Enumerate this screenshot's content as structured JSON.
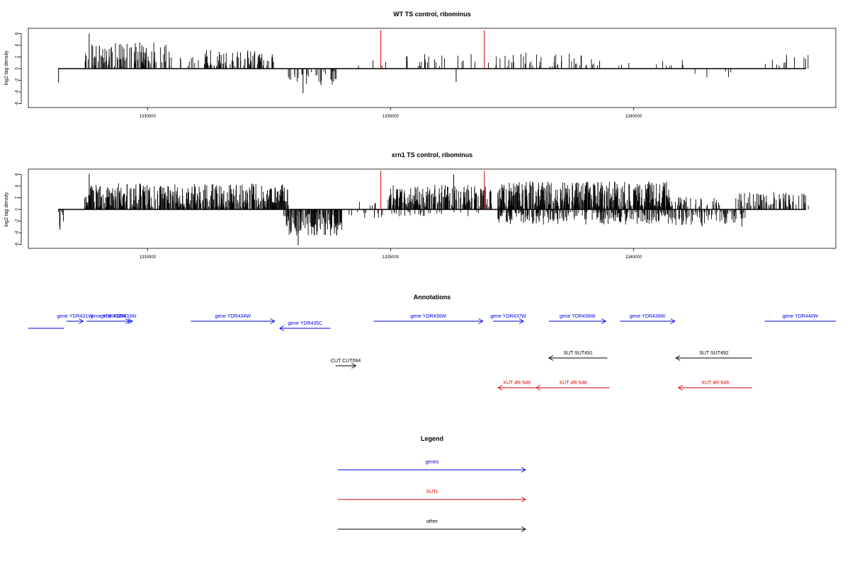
{
  "chart_data": [
    {
      "type": "bar",
      "title": "WT TS control, ribominus",
      "xlabel": "",
      "ylabel": "log2 tag density",
      "xlim": [
        1328000,
        1343900
      ],
      "ylim": [
        -6.8,
        6.8
      ],
      "x_ticks": [
        1330000,
        1335000,
        1340000
      ],
      "x_tick_labels": [
        "1330000",
        "1335000",
        "1340000"
      ],
      "y_ticks": [
        -6,
        -4,
        -2,
        0,
        2,
        4,
        6
      ],
      "y_tick_labels": [
        "-6",
        "-4",
        "-2",
        "0",
        "2",
        "4",
        "6"
      ],
      "highlight_color": "#dd0000",
      "bar_color": "#000000",
      "highlights": [
        {
          "x": 1334800,
          "y": 6.6
        },
        {
          "x": 1336930,
          "y": 6.6
        }
      ],
      "positive_clusters": [
        {
          "x": [
            1328700,
            1330500
          ],
          "max": 4.5,
          "density": 0.09
        },
        {
          "x": [
            1330500,
            1331100
          ],
          "max": 2.0,
          "density": 0.02
        },
        {
          "x": [
            1331150,
            1332600
          ],
          "max": 3.2,
          "density": 0.08
        },
        {
          "x": [
            1334300,
            1334950
          ],
          "max": 1.5,
          "density": 0.01
        },
        {
          "x": [
            1335100,
            1336800
          ],
          "max": 2.6,
          "density": 0.02
        },
        {
          "x": [
            1337000,
            1339400
          ],
          "max": 2.8,
          "density": 0.03
        },
        {
          "x": [
            1339400,
            1341200
          ],
          "max": 1.5,
          "density": 0.008
        },
        {
          "x": [
            1342700,
            1343600
          ],
          "max": 2.4,
          "density": 0.02
        }
      ],
      "negative_clusters": [
        {
          "x": [
            1332800,
            1333900
          ],
          "max": 3.0,
          "density": 0.04
        },
        {
          "x": [
            1340800,
            1342100
          ],
          "max": 2.0,
          "density": 0.006
        }
      ],
      "bars": [
        {
          "x": 1328170,
          "y": -2.4
        },
        {
          "x": 1328800,
          "y": 6.0
        },
        {
          "x": 1333200,
          "y": -4.2
        },
        {
          "x": 1336350,
          "y": -2.3
        }
      ]
    },
    {
      "type": "bar",
      "title": "xrn1 TS control, ribominus",
      "xlabel": "",
      "ylabel": "log2 tag density",
      "xlim": [
        1328000,
        1343900
      ],
      "ylim": [
        -6.8,
        6.8
      ],
      "x_ticks": [
        1330000,
        1335000,
        1340000
      ],
      "x_tick_labels": [
        "1330000",
        "1335000",
        "1340000"
      ],
      "y_ticks": [
        -6,
        -4,
        -2,
        0,
        2,
        4,
        6
      ],
      "y_tick_labels": [
        "-6",
        "-4",
        "-2",
        "0",
        "2",
        "4",
        "6"
      ],
      "highlight_color": "#dd0000",
      "bar_color": "#000000",
      "highlights": [
        {
          "x": 1334800,
          "y": 6.6
        },
        {
          "x": 1336930,
          "y": 6.6
        }
      ],
      "positive_clusters": [
        {
          "x": [
            1328700,
            1332900
          ],
          "max": 4.5,
          "density": 0.18
        },
        {
          "x": [
            1334300,
            1334700
          ],
          "max": 1.8,
          "density": 0.02
        },
        {
          "x": [
            1334950,
            1337100
          ],
          "max": 4.2,
          "density": 0.14
        },
        {
          "x": [
            1337200,
            1340800
          ],
          "max": 4.8,
          "density": 0.2
        },
        {
          "x": [
            1340800,
            1341800
          ],
          "max": 2.2,
          "density": 0.05
        },
        {
          "x": [
            1342100,
            1343600
          ],
          "max": 3.0,
          "density": 0.08
        }
      ],
      "negative_clusters": [
        {
          "x": [
            1328150,
            1328300
          ],
          "max": 3.2,
          "density": 0.05
        },
        {
          "x": [
            1332800,
            1334000
          ],
          "max": 4.5,
          "density": 0.18
        },
        {
          "x": [
            1334000,
            1334900
          ],
          "max": 1.5,
          "density": 0.02
        },
        {
          "x": [
            1335000,
            1336900
          ],
          "max": 1.2,
          "density": 0.02
        },
        {
          "x": [
            1337200,
            1340800
          ],
          "max": 2.6,
          "density": 0.1
        },
        {
          "x": [
            1340800,
            1342300
          ],
          "max": 3.0,
          "density": 0.08
        }
      ],
      "bars": [
        {
          "x": 1328200,
          "y": -3.5
        },
        {
          "x": 1328800,
          "y": 6.1
        },
        {
          "x": 1333100,
          "y": -6.1
        },
        {
          "x": 1336300,
          "y": 6.0
        }
      ]
    }
  ],
  "annotations": {
    "title": "Annotations",
    "colors": {
      "gene": "#0000ee",
      "xut": "#dd0000",
      "other": "#000000"
    },
    "features": [
      {
        "label": "",
        "kind": "gene",
        "start": 1328000,
        "end": 1328700,
        "strand": "none",
        "row": 2
      },
      {
        "label": "gene YDR431W",
        "kind": "gene",
        "start": 1328750,
        "end": 1329080,
        "strand": "+",
        "row": 1
      },
      {
        "label": "gene YDR432W",
        "kind": "gene",
        "start": 1329150,
        "end": 1330000,
        "strand": "+",
        "row": 1
      },
      {
        "label": "gene YDR433W",
        "kind": "gene",
        "start": 1329500,
        "end": 1330050,
        "strand": "+",
        "row": 1
      },
      {
        "label": "gene YDR434W",
        "kind": "gene",
        "start": 1331200,
        "end": 1332850,
        "strand": "+",
        "row": 1
      },
      {
        "label": "gene YDR435C",
        "kind": "gene",
        "start": 1332950,
        "end": 1333950,
        "strand": "-",
        "row": 2
      },
      {
        "label": "gene YDR436W",
        "kind": "gene",
        "start": 1334800,
        "end": 1336950,
        "strand": "+",
        "row": 1
      },
      {
        "label": "gene YDR437W",
        "kind": "gene",
        "start": 1337150,
        "end": 1337750,
        "strand": "+",
        "row": 1
      },
      {
        "label": "gene YDR438W",
        "kind": "gene",
        "start": 1338250,
        "end": 1339370,
        "strand": "+",
        "row": 1
      },
      {
        "label": "gene YDR439W",
        "kind": "gene",
        "start": 1339650,
        "end": 1340730,
        "strand": "+",
        "row": 1
      },
      {
        "label": "gene YDR440W",
        "kind": "gene",
        "start": 1342500,
        "end": 1343900,
        "strand": "none",
        "row": 1
      },
      {
        "label": "SUT SUT491",
        "kind": "other",
        "start": 1338250,
        "end": 1339400,
        "strand": "-",
        "row": 3
      },
      {
        "label": "SUT SUT492",
        "kind": "other",
        "start": 1340750,
        "end": 1342250,
        "strand": "-",
        "row": 3
      },
      {
        "label": "CUT CUT094",
        "kind": "other",
        "start": 1334050,
        "end": 1334450,
        "strand": "+",
        "row": 4
      },
      {
        "label": "XUT 4R-546",
        "kind": "xut",
        "start": 1337250,
        "end": 1337990,
        "strand": "-",
        "row": 5
      },
      {
        "label": "XUT 4R-548",
        "kind": "xut",
        "start": 1338000,
        "end": 1339450,
        "strand": "-",
        "row": 5
      },
      {
        "label": "XUT 4R-549",
        "kind": "xut",
        "start": 1340800,
        "end": 1342250,
        "strand": "-",
        "row": 5
      }
    ]
  },
  "legend": {
    "title": "Legend",
    "entries": [
      {
        "label": "genes",
        "color": "#0000ee"
      },
      {
        "label": "XUTs",
        "color": "#dd0000"
      },
      {
        "label": "other",
        "color": "#000000"
      }
    ]
  }
}
